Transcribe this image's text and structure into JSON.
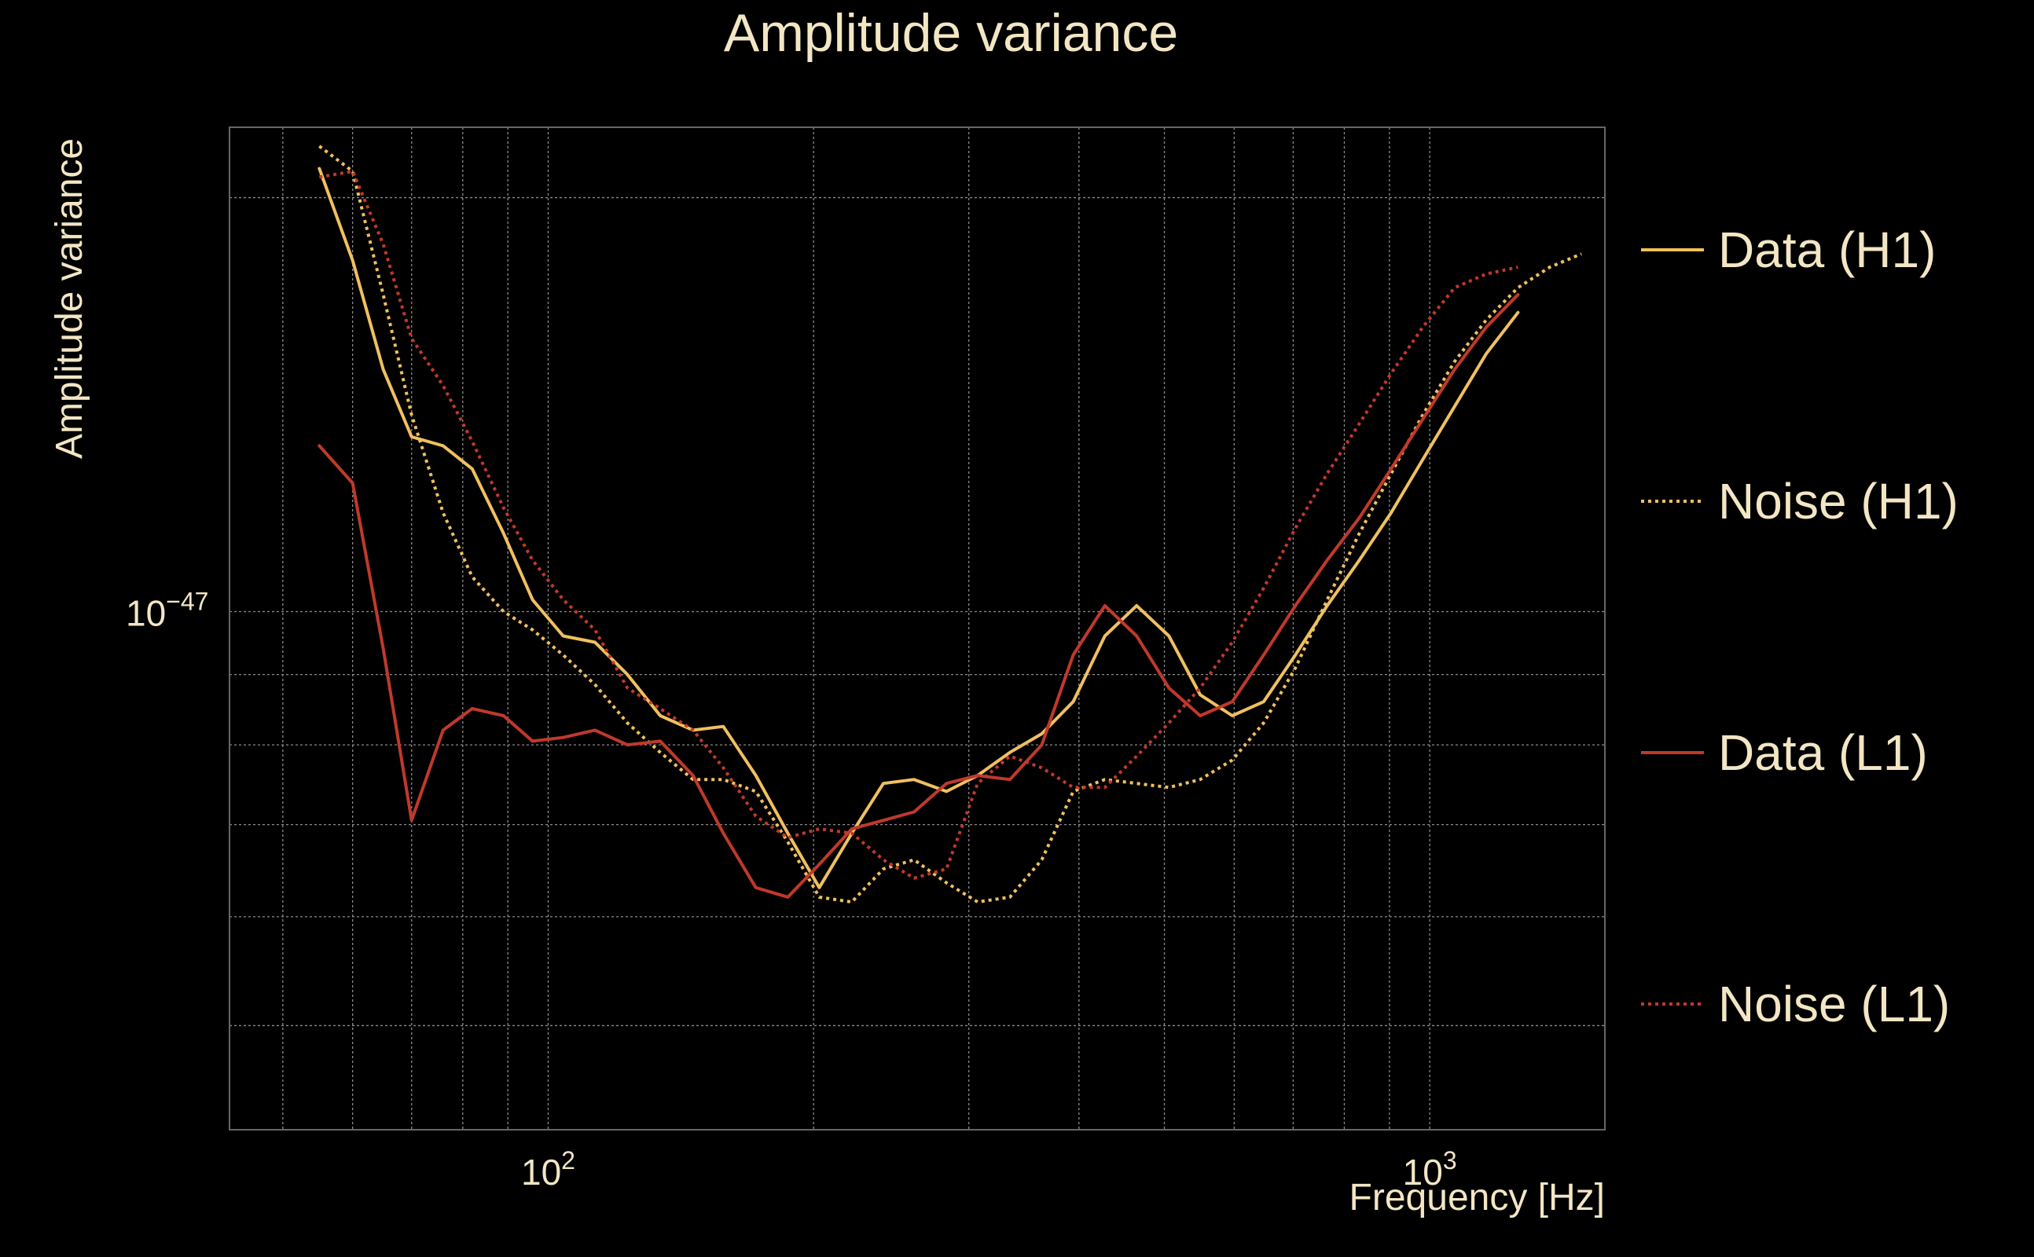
{
  "chart_data": {
    "type": "line",
    "title": "Amplitude variance",
    "xlabel": "Frequency [Hz]",
    "ylabel": "Amplitude variance",
    "xscale": "log",
    "yscale": "log",
    "xlim": [
      43.5,
      1580
    ],
    "ylim": [
      4.2e-48,
      2.25e-47
    ],
    "x_ticks": [
      {
        "value": 100,
        "base": "10",
        "exp": "2"
      },
      {
        "value": 1000,
        "base": "10",
        "exp": "3"
      }
    ],
    "y_ticks": [
      {
        "value": 1e-47,
        "base": "10",
        "exp": "−47"
      }
    ],
    "grid": true,
    "legend_position": "right",
    "x": [
      55,
      60,
      65,
      70,
      76,
      82,
      89,
      96,
      104,
      113,
      123,
      134,
      146,
      158,
      172,
      187,
      203,
      221,
      240,
      260,
      283,
      307,
      334,
      363,
      394,
      428,
      465,
      506,
      549,
      597,
      648,
      704,
      765,
      832,
      904,
      982,
      1067,
      1159,
      1259,
      1368,
      1486
    ],
    "series": [
      {
        "name": "Data (H1)",
        "color": "#f0c060",
        "dash": "solid",
        "values": [
          2.1e-47,
          1.8e-47,
          1.5e-47,
          1.34e-47,
          1.32e-47,
          1.27e-47,
          1.14e-47,
          1.02e-47,
          9.6e-48,
          9.5e-48,
          9e-48,
          8.4e-48,
          8.2e-48,
          8.25e-48,
          7.6e-48,
          6.9e-48,
          6.3e-48,
          6.9e-48,
          7.5e-48,
          7.55e-48,
          7.4e-48,
          7.6e-48,
          7.9e-48,
          8.15e-48,
          8.6e-48,
          9.6e-48,
          1.01e-47,
          9.6e-48,
          8.7e-48,
          8.4e-48,
          8.6e-48,
          9.3e-48,
          1.01e-47,
          1.09e-47,
          1.18e-47,
          1.29e-47,
          1.41e-47,
          1.54e-47,
          1.65e-47,
          1.75e-47,
          1.8e-47
        ],
        "visible": [
          true,
          true,
          true,
          true,
          true,
          true,
          true,
          true,
          true,
          true,
          true,
          true,
          true,
          true,
          true,
          true,
          true,
          true,
          true,
          true,
          true,
          true,
          true,
          true,
          true,
          true,
          true,
          true,
          true,
          true,
          true,
          true,
          true,
          true,
          true,
          true,
          true,
          true,
          true,
          false,
          false
        ]
      },
      {
        "name": "Noise (H1)",
        "color": "#f0c060",
        "dash": "dotted",
        "values": [
          2.18e-47,
          2.09e-47,
          1.7e-47,
          1.39e-47,
          1.18e-47,
          1.06e-47,
          1e-47,
          9.7e-48,
          9.3e-48,
          8.85e-48,
          8.3e-48,
          7.9e-48,
          7.55e-48,
          7.55e-48,
          7.4e-48,
          6.8e-48,
          6.2e-48,
          6.15e-48,
          6.5e-48,
          6.6e-48,
          6.35e-48,
          6.15e-48,
          6.2e-48,
          6.6e-48,
          7.4e-48,
          7.55e-48,
          7.5e-48,
          7.45e-48,
          7.55e-48,
          7.8e-48,
          8.3e-48,
          9.1e-48,
          1.02e-47,
          1.14e-47,
          1.26e-47,
          1.39e-47,
          1.52e-47,
          1.63e-47,
          1.72e-47,
          1.78e-47,
          1.82e-47
        ],
        "visible": [
          true,
          true,
          true,
          true,
          true,
          true,
          true,
          true,
          true,
          true,
          true,
          true,
          true,
          true,
          true,
          true,
          true,
          true,
          true,
          true,
          true,
          true,
          true,
          true,
          true,
          true,
          true,
          true,
          true,
          true,
          true,
          true,
          true,
          true,
          true,
          true,
          true,
          true,
          true,
          true,
          true
        ]
      },
      {
        "name": "Data (L1)",
        "color": "#c0392b",
        "dash": "solid",
        "values": [
          1.32e-47,
          1.24e-47,
          9.4e-48,
          7.05e-48,
          8.2e-48,
          8.5e-48,
          8.4e-48,
          8.05e-48,
          8.1e-48,
          8.2e-48,
          8e-48,
          8.05e-48,
          7.6e-48,
          6.9e-48,
          6.3e-48,
          6.2e-48,
          6.55e-48,
          6.95e-48,
          7.05e-48,
          7.15e-48,
          7.5e-48,
          7.6e-48,
          7.55e-48,
          8e-48,
          9.3e-48,
          1.01e-47,
          9.6e-48,
          8.8e-48,
          8.4e-48,
          8.6e-48,
          9.3e-48,
          1.01e-47,
          1.09e-47,
          1.17e-47,
          1.27e-47,
          1.38e-47,
          1.5e-47,
          1.61e-47,
          1.7e-47,
          1.76e-47,
          1.75e-47
        ],
        "visible": [
          true,
          true,
          true,
          true,
          true,
          true,
          true,
          true,
          true,
          true,
          true,
          true,
          true,
          true,
          true,
          true,
          true,
          true,
          true,
          true,
          true,
          true,
          true,
          true,
          true,
          true,
          true,
          true,
          true,
          true,
          true,
          true,
          true,
          true,
          true,
          true,
          true,
          true,
          true,
          false,
          false
        ]
      },
      {
        "name": "Noise (L1)",
        "color": "#c0392b",
        "dash": "dotted",
        "values": [
          2.07e-47,
          2.09e-47,
          1.85e-47,
          1.58e-47,
          1.46e-47,
          1.33e-47,
          1.19e-47,
          1.09e-47,
          1.02e-47,
          9.7e-48,
          8.8e-48,
          8.5e-48,
          8.2e-48,
          7.7e-48,
          7.1e-48,
          6.85e-48,
          6.95e-48,
          6.9e-48,
          6.6e-48,
          6.4e-48,
          6.5e-48,
          7.5e-48,
          7.85e-48,
          7.7e-48,
          7.45e-48,
          7.45e-48,
          7.85e-48,
          8.3e-48,
          8.8e-48,
          9.5e-48,
          1.04e-47,
          1.15e-47,
          1.26e-47,
          1.37e-47,
          1.49e-47,
          1.61e-47,
          1.72e-47,
          1.76e-47,
          1.78e-47,
          1.78e-47,
          1.78e-47
        ],
        "visible": [
          true,
          true,
          true,
          true,
          true,
          true,
          true,
          true,
          true,
          true,
          true,
          true,
          true,
          true,
          true,
          true,
          true,
          true,
          true,
          true,
          true,
          true,
          true,
          true,
          true,
          true,
          true,
          true,
          true,
          true,
          true,
          true,
          true,
          true,
          true,
          true,
          true,
          true,
          true,
          false,
          false
        ]
      }
    ]
  }
}
